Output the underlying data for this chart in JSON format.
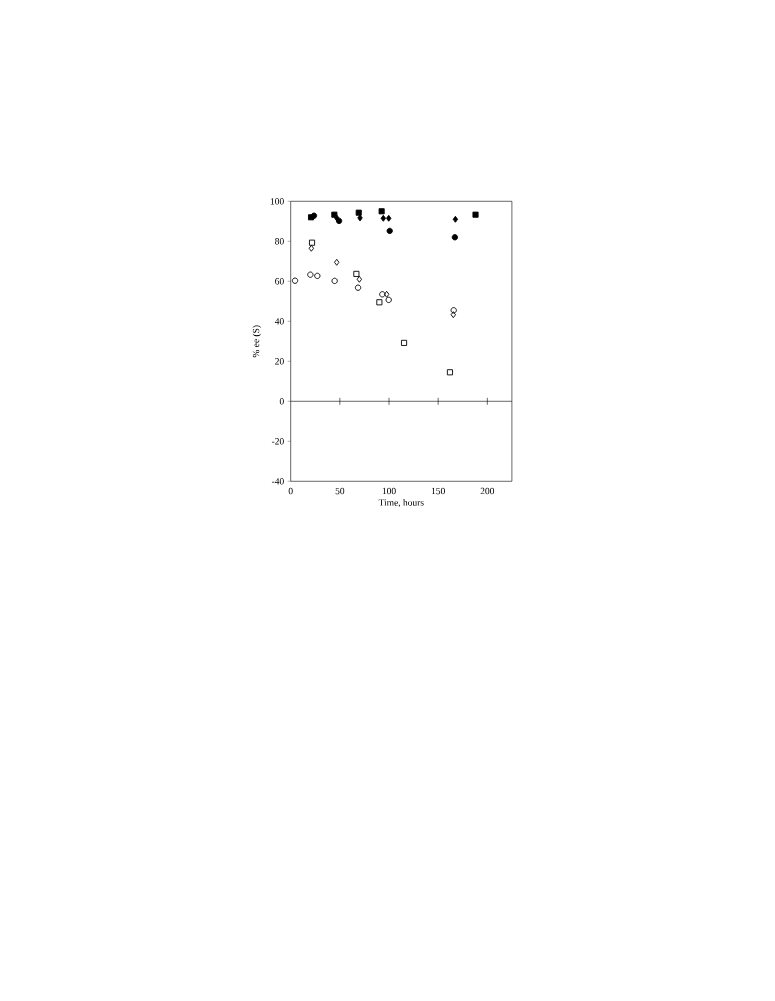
{
  "chart_data": {
    "type": "scatter",
    "xlabel": "Time, hours",
    "ylabel": "% ee (S)",
    "xlim": [
      0,
      225
    ],
    "ylim": [
      -40,
      100
    ],
    "xticks": [
      0,
      50,
      100,
      150,
      200
    ],
    "yticks": [
      -40,
      -20,
      0,
      20,
      40,
      60,
      80,
      100
    ],
    "grid": false,
    "ref_lines": [
      {
        "axis": "y",
        "value": 0,
        "color": "#000000"
      }
    ],
    "series": [
      {
        "color": "#000000",
        "marker": "square",
        "x": [
          20.7,
          44.4,
          69.2,
          92.5,
          188
        ],
        "values": [
          92,
          93.3,
          94.3,
          95,
          93.3
        ]
      },
      {
        "color": "#000000",
        "marker": "circle",
        "x": [
          23.7,
          49.2,
          100.7,
          167
        ],
        "values": [
          92.8,
          90.2,
          85.2,
          82
        ]
      },
      {
        "color": "#000000",
        "marker": "diamond",
        "x": [
          22.4,
          46.8,
          70.5,
          94.2,
          99.7,
          167.5
        ],
        "values": [
          92.3,
          91.7,
          91.7,
          91.5,
          91.5,
          91
        ]
      },
      {
        "marker": "square",
        "x": [
          21.7,
          66.8,
          90.2,
          115.3,
          162
        ],
        "values": [
          79.3,
          63.7,
          49.5,
          29.2,
          14.5
        ]
      },
      {
        "marker": "diamond",
        "x": [
          21,
          46.8,
          69.8,
          97.6,
          165.4
        ],
        "values": [
          76.5,
          69.5,
          61,
          53.5,
          43.3
        ]
      },
      {
        "marker": "circle",
        "x": [
          4.4,
          20,
          27.1,
          44.7,
          68.5,
          93.2,
          99.7,
          165.8
        ],
        "values": [
          60.3,
          63.3,
          62.7,
          60.2,
          56.8,
          53.5,
          50.7,
          45.5
        ]
      }
    ]
  }
}
